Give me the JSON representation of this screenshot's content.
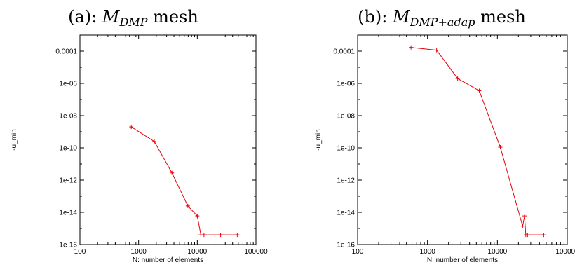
{
  "chart_data": [
    {
      "type": "line",
      "title_prefix": "(a): ",
      "title_math": "M",
      "title_subscript": "DMP",
      "title_suffix": " mesh",
      "xlabel": "N: number of elements",
      "ylabel": "-u_min",
      "xscale": "log",
      "yscale": "log",
      "xlim": [
        100,
        100000
      ],
      "ylim": [
        1e-16,
        0.001
      ],
      "xticks": [
        {
          "v": 100,
          "label": "100"
        },
        {
          "v": 1000,
          "label": "1000"
        },
        {
          "v": 10000,
          "label": "10000"
        },
        {
          "v": 100000,
          "label": "100000"
        }
      ],
      "yticks": [
        {
          "v": 1e-16,
          "label": "1e-16"
        },
        {
          "v": 1e-14,
          "label": "1e-14"
        },
        {
          "v": 1e-12,
          "label": "1e-12"
        },
        {
          "v": 1e-10,
          "label": "1e-10"
        },
        {
          "v": 1e-08,
          "label": "1e-08"
        },
        {
          "v": 1e-06,
          "label": "1e-06"
        },
        {
          "v": 0.0001,
          "label": "0.0001"
        }
      ],
      "grid": false,
      "color": "#e8000b",
      "series": [
        {
          "x": [
            750,
            1850,
            3700,
            6900,
            10000,
            11500,
            13000,
            25000,
            48000
          ],
          "y": [
            2e-09,
            2.5e-10,
            2.8e-12,
            2.5e-14,
            6e-15,
            4e-16,
            4e-16,
            4e-16,
            4e-16
          ]
        }
      ]
    },
    {
      "type": "line",
      "title_prefix": "(b): ",
      "title_math": "M",
      "title_subscript": "DMP+adap",
      "title_suffix": " mesh",
      "xlabel": "N: number of elements",
      "ylabel": "-u_min",
      "xscale": "log",
      "yscale": "log",
      "xlim": [
        100,
        100000
      ],
      "ylim": [
        1e-16,
        0.001
      ],
      "xticks": [
        {
          "v": 100,
          "label": "100"
        },
        {
          "v": 1000,
          "label": "1000"
        },
        {
          "v": 10000,
          "label": "10000"
        },
        {
          "v": 100000,
          "label": "100000"
        }
      ],
      "yticks": [
        {
          "v": 1e-16,
          "label": "1e-16"
        },
        {
          "v": 1e-14,
          "label": "1e-14"
        },
        {
          "v": 1e-12,
          "label": "1e-12"
        },
        {
          "v": 1e-10,
          "label": "1e-10"
        },
        {
          "v": 1e-08,
          "label": "1e-08"
        },
        {
          "v": 1e-06,
          "label": "1e-06"
        },
        {
          "v": 0.0001,
          "label": "0.0001"
        }
      ],
      "grid": false,
      "color": "#e8000b",
      "series": [
        {
          "x": [
            580,
            1350,
            2700,
            5500,
            11000,
            23000,
            24500,
            25500,
            27000,
            46000
          ],
          "y": [
            0.00017,
            0.000115,
            2e-06,
            3.5e-07,
            1.1e-10,
            1.4e-15,
            6e-15,
            4e-16,
            4e-16,
            4e-16
          ]
        }
      ]
    }
  ]
}
